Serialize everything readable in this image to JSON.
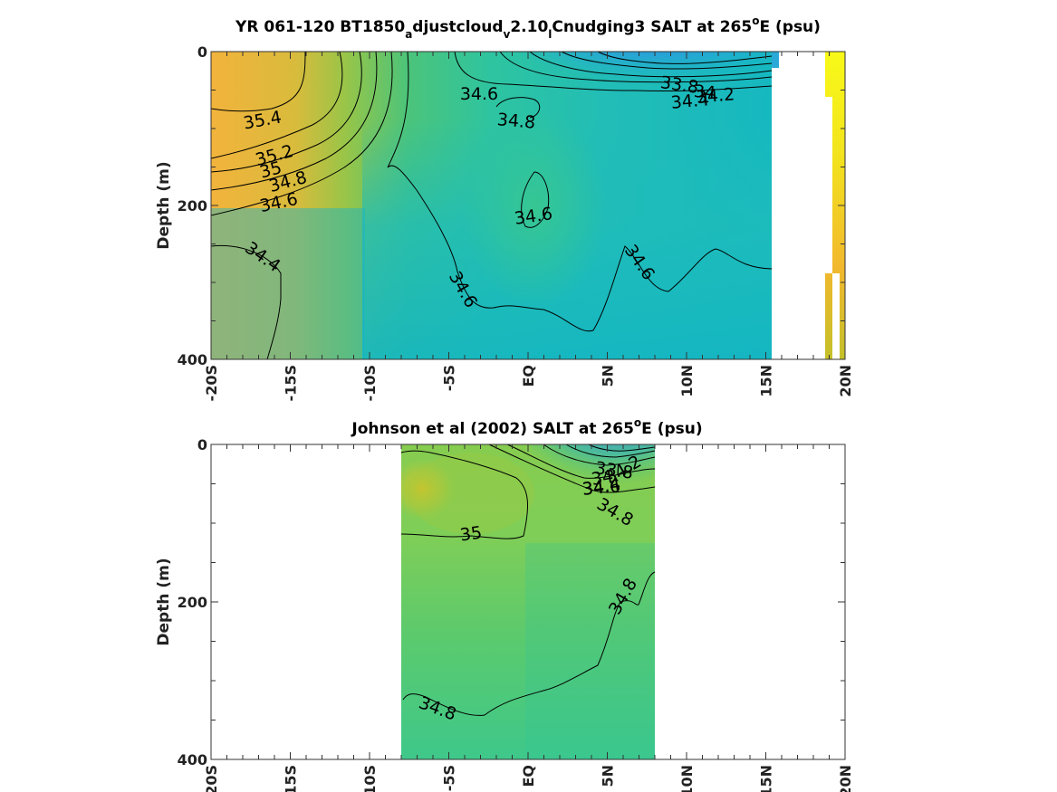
{
  "chart_data": [
    {
      "type": "heatmap",
      "title_parts": [
        "YR 061-120 BT1850",
        "a",
        "djustcloud",
        "v",
        "2.10",
        "l",
        "Cnudging3 SALT at 265",
        "o",
        "E (psu)"
      ],
      "ylabel": "Depth (m)",
      "xlim": [
        -20,
        20
      ],
      "ylim": [
        0,
        400
      ],
      "xtick_labels": [
        "-20S",
        "-15S",
        "-10S",
        "-5S",
        "EQ",
        "5N",
        "10N",
        "15N",
        "20N"
      ],
      "ytick_labels": [
        "0",
        "200",
        "400"
      ],
      "contour_labels": [
        "35.4",
        "35.2",
        "35",
        "34.8",
        "34.6",
        "34.4",
        "34.6",
        "34.8",
        "34.6",
        "34.6",
        "34.6",
        "33.8",
        "34",
        "34.2",
        "34.4"
      ],
      "salinity_grid": {
        "x": [
          -20,
          -15,
          -10,
          -5,
          0,
          5,
          10,
          15
        ],
        "depth": [
          0,
          50,
          100,
          150,
          200,
          300,
          400
        ],
        "values": [
          [
            35.5,
            35.45,
            35.2,
            34.75,
            34.5,
            34.15,
            33.85,
            34.3
          ],
          [
            35.45,
            35.4,
            35.1,
            34.7,
            34.55,
            34.3,
            34.1,
            34.4
          ],
          [
            35.35,
            35.25,
            34.95,
            34.68,
            34.72,
            34.65,
            34.6,
            34.6
          ],
          [
            34.95,
            34.9,
            34.78,
            34.62,
            34.68,
            34.7,
            34.7,
            34.66
          ],
          [
            34.55,
            34.6,
            34.66,
            34.62,
            34.66,
            34.7,
            34.7,
            34.64
          ],
          [
            34.42,
            34.52,
            34.6,
            34.6,
            34.55,
            34.58,
            34.55,
            34.55
          ],
          [
            34.45,
            34.5,
            34.56,
            34.55,
            34.55,
            34.6,
            34.58,
            34.55
          ]
        ]
      }
    },
    {
      "type": "heatmap",
      "title_parts": [
        "Johnson et al (2002) SALT at 265",
        "o",
        "E (psu)"
      ],
      "ylabel": "Depth (m)",
      "xlim": [
        -20,
        20
      ],
      "ylim": [
        0,
        400
      ],
      "xtick_labels": [
        "-20S",
        "-15S",
        "-10S",
        "-5S",
        "EQ",
        "5N",
        "10N",
        "15N",
        "20N"
      ],
      "ytick_labels": [
        "0",
        "200",
        "400"
      ],
      "contour_labels": [
        "35",
        "34.8",
        "34.8",
        "34.8",
        "33.8",
        "34",
        "34.2",
        "34.4",
        "34.6"
      ],
      "salinity_grid": {
        "x": [
          -8,
          -4,
          0,
          4,
          8
        ],
        "depth": [
          0,
          50,
          100,
          200,
          300,
          400
        ],
        "values": [
          [
            35.1,
            35.05,
            34.9,
            33.9,
            34.4
          ],
          [
            35.2,
            35.05,
            35.0,
            34.5,
            34.75
          ],
          [
            35.02,
            35.0,
            34.95,
            34.9,
            34.85
          ],
          [
            34.95,
            34.92,
            34.9,
            34.88,
            34.82
          ],
          [
            34.88,
            34.86,
            34.84,
            34.8,
            34.78
          ],
          [
            34.8,
            34.78,
            34.78,
            34.76,
            34.75
          ]
        ]
      }
    }
  ]
}
